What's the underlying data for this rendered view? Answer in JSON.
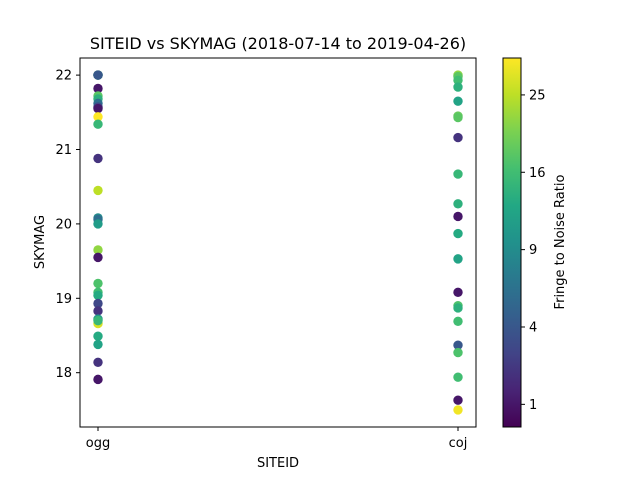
{
  "chart_data": {
    "type": "scatter",
    "title": "SITEID vs SKYMAG (2018-07-14 to 2019-04-26)",
    "xlabel": "SITEID",
    "ylabel": "SKYMAG",
    "categories": [
      "ogg",
      "coj"
    ],
    "ylim": [
      17.27,
      22.23
    ],
    "yticks": [
      18,
      19,
      20,
      21,
      22
    ],
    "grid": false,
    "colorbar": {
      "label": "Fringe to Noise Ratio",
      "colormap": "viridis",
      "scale": "sqrt",
      "range": [
        0.5,
        30
      ],
      "ticks": [
        1,
        4,
        9,
        16,
        25
      ]
    },
    "points": [
      {
        "x": "ogg",
        "y": 22.0,
        "c": 1
      },
      {
        "x": "ogg",
        "y": 22.0,
        "c": 9
      },
      {
        "x": "ogg",
        "y": 22.0,
        "c": 16
      },
      {
        "x": "ogg",
        "y": 22.0,
        "c": 4
      },
      {
        "x": "ogg",
        "y": 21.82,
        "c": 1
      },
      {
        "x": "ogg",
        "y": 21.72,
        "c": 18
      },
      {
        "x": "ogg",
        "y": 21.68,
        "c": 14
      },
      {
        "x": "ogg",
        "y": 21.62,
        "c": 6
      },
      {
        "x": "ogg",
        "y": 21.57,
        "c": 3
      },
      {
        "x": "ogg",
        "y": 21.55,
        "c": 1
      },
      {
        "x": "ogg",
        "y": 21.44,
        "c": 30
      },
      {
        "x": "ogg",
        "y": 21.34,
        "c": 15
      },
      {
        "x": "ogg",
        "y": 20.88,
        "c": 2
      },
      {
        "x": "ogg",
        "y": 20.45,
        "c": 25
      },
      {
        "x": "ogg",
        "y": 20.08,
        "c": 9
      },
      {
        "x": "ogg",
        "y": 20.06,
        "c": 6
      },
      {
        "x": "ogg",
        "y": 20.0,
        "c": 11
      },
      {
        "x": "ogg",
        "y": 19.65,
        "c": 22
      },
      {
        "x": "ogg",
        "y": 19.55,
        "c": 1
      },
      {
        "x": "ogg",
        "y": 19.2,
        "c": 17
      },
      {
        "x": "ogg",
        "y": 19.08,
        "c": 16
      },
      {
        "x": "ogg",
        "y": 19.04,
        "c": 13
      },
      {
        "x": "ogg",
        "y": 18.93,
        "c": 3
      },
      {
        "x": "ogg",
        "y": 18.83,
        "c": 2
      },
      {
        "x": "ogg",
        "y": 18.72,
        "c": 10
      },
      {
        "x": "ogg",
        "y": 18.66,
        "c": 27
      },
      {
        "x": "ogg",
        "y": 18.7,
        "c": 15
      },
      {
        "x": "ogg",
        "y": 18.49,
        "c": 13
      },
      {
        "x": "ogg",
        "y": 18.38,
        "c": 12
      },
      {
        "x": "ogg",
        "y": 18.14,
        "c": 2
      },
      {
        "x": "ogg",
        "y": 17.91,
        "c": 1
      },
      {
        "x": "coj",
        "y": 22.0,
        "c": 22
      },
      {
        "x": "coj",
        "y": 21.98,
        "c": 18
      },
      {
        "x": "coj",
        "y": 21.93,
        "c": 16
      },
      {
        "x": "coj",
        "y": 21.84,
        "c": 14
      },
      {
        "x": "coj",
        "y": 21.65,
        "c": 12
      },
      {
        "x": "coj",
        "y": 21.45,
        "c": 19
      },
      {
        "x": "coj",
        "y": 21.43,
        "c": 18
      },
      {
        "x": "coj",
        "y": 21.16,
        "c": 2
      },
      {
        "x": "coj",
        "y": 20.67,
        "c": 15
      },
      {
        "x": "coj",
        "y": 20.27,
        "c": 14
      },
      {
        "x": "coj",
        "y": 20.1,
        "c": 1
      },
      {
        "x": "coj",
        "y": 19.87,
        "c": 13
      },
      {
        "x": "coj",
        "y": 19.53,
        "c": 12
      },
      {
        "x": "coj",
        "y": 19.08,
        "c": 1
      },
      {
        "x": "coj",
        "y": 18.9,
        "c": 17
      },
      {
        "x": "coj",
        "y": 18.87,
        "c": 14
      },
      {
        "x": "coj",
        "y": 18.69,
        "c": 16
      },
      {
        "x": "coj",
        "y": 18.37,
        "c": 4
      },
      {
        "x": "coj",
        "y": 18.27,
        "c": 17
      },
      {
        "x": "coj",
        "y": 17.94,
        "c": 16
      },
      {
        "x": "coj",
        "y": 17.63,
        "c": 1
      },
      {
        "x": "coj",
        "y": 17.5,
        "c": 29
      }
    ]
  }
}
